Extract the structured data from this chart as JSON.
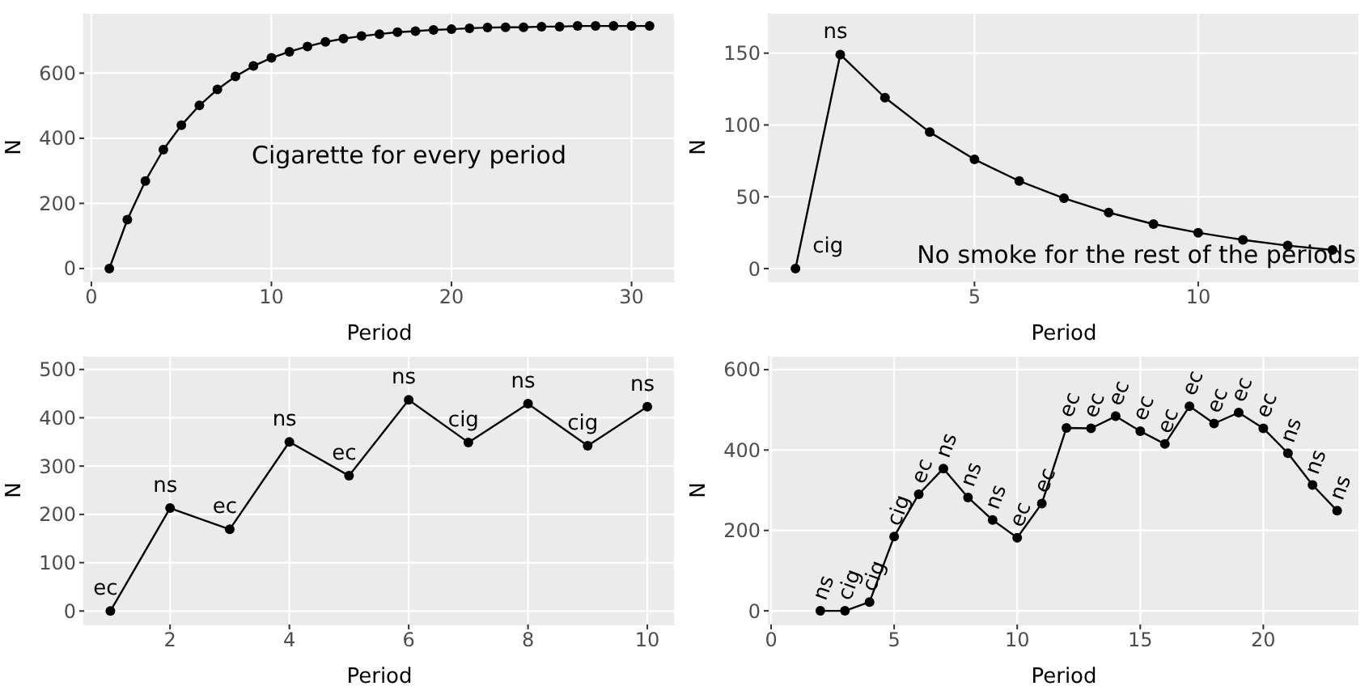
{
  "chart_data": [
    {
      "type": "line",
      "xlabel": "Period",
      "ylabel": "N",
      "color": "#000000",
      "marker": "circle",
      "grid": true,
      "x": [
        1,
        2,
        3,
        4,
        5,
        6,
        7,
        8,
        9,
        10,
        11,
        12,
        13,
        14,
        15,
        16,
        17,
        18,
        19,
        20,
        21,
        22,
        23,
        24,
        25,
        26,
        27,
        28,
        29,
        30,
        31
      ],
      "values": [
        0,
        150,
        269,
        365,
        440,
        501,
        550,
        590,
        622,
        647,
        666,
        682,
        696,
        706,
        714,
        720,
        726,
        729,
        733,
        735,
        738,
        740,
        741,
        741,
        743,
        743,
        745,
        745,
        745,
        745,
        745
      ],
      "xlim": [
        -0.4,
        32.4
      ],
      "xticks": [
        0,
        10,
        20,
        30
      ],
      "ylim": [
        -40,
        785
      ],
      "yticks": [
        0,
        200,
        400,
        600
      ],
      "annotations": [
        "Cigarette for every period"
      ]
    },
    {
      "type": "line",
      "xlabel": "Period",
      "ylabel": "N",
      "color": "#000000",
      "marker": "circle",
      "grid": true,
      "x": [
        1,
        2,
        3,
        4,
        5,
        6,
        7,
        8,
        9,
        10,
        11,
        12,
        13
      ],
      "values": [
        0,
        149,
        119,
        95,
        76,
        61,
        49,
        39,
        31,
        25,
        20,
        16,
        13
      ],
      "xlim": [
        0.4,
        13.6
      ],
      "xticks": [
        5,
        10
      ],
      "ylim": [
        -9,
        178
      ],
      "yticks": [
        0,
        50,
        100,
        150
      ],
      "annotations": [
        {
          "text": "cig",
          "x": 1,
          "y": 0
        },
        {
          "text": "ns",
          "x": 2,
          "y": 149
        },
        "No smoke for the rest of the periods"
      ]
    },
    {
      "type": "line",
      "xlabel": "Period",
      "ylabel": "N",
      "color": "#000000",
      "marker": "circle",
      "grid": true,
      "x": [
        1,
        2,
        3,
        4,
        5,
        6,
        7,
        8,
        9,
        10
      ],
      "values": [
        0,
        213,
        169,
        350,
        280,
        437,
        349,
        429,
        342,
        423
      ],
      "xlim": [
        0.56,
        10.46
      ],
      "xticks": [
        2,
        4,
        6,
        8,
        10
      ],
      "ylim": [
        -28,
        528
      ],
      "yticks": [
        0,
        100,
        200,
        300,
        400,
        500
      ],
      "annotations": [
        {
          "text": "ec",
          "x": 1,
          "y": 0
        },
        {
          "text": "ns",
          "x": 2,
          "y": 213
        },
        {
          "text": "ec",
          "x": 3,
          "y": 169
        },
        {
          "text": "ns",
          "x": 4,
          "y": 350
        },
        {
          "text": "ec",
          "x": 5,
          "y": 280
        },
        {
          "text": "ns",
          "x": 6,
          "y": 437
        },
        {
          "text": "cig",
          "x": 7,
          "y": 349
        },
        {
          "text": "ns",
          "x": 8,
          "y": 429
        },
        {
          "text": "cig",
          "x": 9,
          "y": 342
        },
        {
          "text": "ns",
          "x": 10,
          "y": 423
        }
      ]
    },
    {
      "type": "line",
      "xlabel": "Period",
      "ylabel": "N",
      "color": "#000000",
      "marker": "circle",
      "grid": true,
      "x": [
        2,
        3,
        4,
        5,
        6,
        7,
        8,
        9,
        10,
        11,
        12,
        13,
        14,
        15,
        16,
        17,
        18,
        19,
        20,
        21,
        22,
        23
      ],
      "values": [
        0,
        0,
        22,
        185,
        290,
        354,
        282,
        226,
        182,
        267,
        455,
        454,
        484,
        447,
        415,
        509,
        466,
        493,
        454,
        392,
        313,
        249
      ],
      "xlim": [
        -0.1,
        23.9
      ],
      "xticks": [
        0,
        5,
        10,
        15,
        20
      ],
      "ylim": [
        -34,
        634
      ],
      "yticks": [
        0,
        200,
        400,
        600
      ],
      "annotations": [
        {
          "text": "ns",
          "x": 2,
          "y": 0
        },
        {
          "text": "cig",
          "x": 3,
          "y": 0
        },
        {
          "text": "cig",
          "x": 4,
          "y": 22
        },
        {
          "text": "cig",
          "x": 5,
          "y": 185
        },
        {
          "text": "ec",
          "x": 6,
          "y": 290
        },
        {
          "text": "ns",
          "x": 7,
          "y": 354
        },
        {
          "text": "ns",
          "x": 8,
          "y": 282
        },
        {
          "text": "ns",
          "x": 9,
          "y": 226
        },
        {
          "text": "ec",
          "x": 10,
          "y": 182
        },
        {
          "text": "ec",
          "x": 11,
          "y": 267
        },
        {
          "text": "ec",
          "x": 12,
          "y": 455
        },
        {
          "text": "ec",
          "x": 13,
          "y": 454
        },
        {
          "text": "ec",
          "x": 14,
          "y": 484
        },
        {
          "text": "ec",
          "x": 15,
          "y": 447
        },
        {
          "text": "ec",
          "x": 16,
          "y": 415
        },
        {
          "text": "ec",
          "x": 17,
          "y": 509
        },
        {
          "text": "ec",
          "x": 18,
          "y": 466
        },
        {
          "text": "ec",
          "x": 19,
          "y": 493
        },
        {
          "text": "ec",
          "x": 20,
          "y": 454
        },
        {
          "text": "ns",
          "x": 21,
          "y": 392
        },
        {
          "text": "ns",
          "x": 22,
          "y": 313
        },
        {
          "text": "ns",
          "x": 23,
          "y": 249
        }
      ]
    }
  ]
}
